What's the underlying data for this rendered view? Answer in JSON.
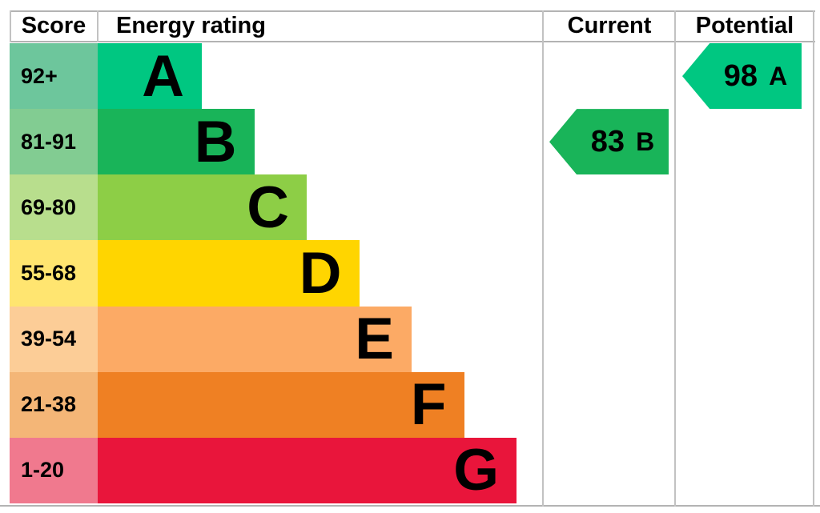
{
  "header": {
    "score": "Score",
    "energy_rating": "Energy rating",
    "current": "Current",
    "potential": "Potential"
  },
  "chart_data": {
    "type": "bar",
    "subtype": "epc-energy-rating",
    "title": "Energy rating",
    "columns": [
      "Score",
      "Energy rating",
      "Current",
      "Potential"
    ],
    "bands": [
      {
        "letter": "A",
        "score_range": "92+",
        "bar_color": "#00c781",
        "score_cell_color": "#6dc69c"
      },
      {
        "letter": "B",
        "score_range": "81-91",
        "bar_color": "#19b459",
        "score_cell_color": "#82cc92"
      },
      {
        "letter": "C",
        "score_range": "69-80",
        "bar_color": "#8dce46",
        "score_cell_color": "#b8de8d"
      },
      {
        "letter": "D",
        "score_range": "55-68",
        "bar_color": "#ffd500",
        "score_cell_color": "#ffe570"
      },
      {
        "letter": "E",
        "score_range": "39-54",
        "bar_color": "#fcaa65",
        "score_cell_color": "#fccd97"
      },
      {
        "letter": "F",
        "score_range": "21-38",
        "bar_color": "#ef8023",
        "score_cell_color": "#f4b677"
      },
      {
        "letter": "G",
        "score_range": "1-20",
        "bar_color": "#e9153b",
        "score_cell_color": "#f0798e"
      }
    ],
    "current": {
      "value": 83,
      "band": "B",
      "color": "#19b459",
      "band_index": 1
    },
    "potential": {
      "value": 98,
      "band": "A",
      "color": "#00c781",
      "band_index": 0
    },
    "layout_hints": {
      "grid": "off",
      "bars_step_equal": true,
      "arrow_direction": "left"
    }
  },
  "colors": {
    "background": "#ffffff",
    "border_line": "#b9b9b9",
    "text": "#000000"
  }
}
